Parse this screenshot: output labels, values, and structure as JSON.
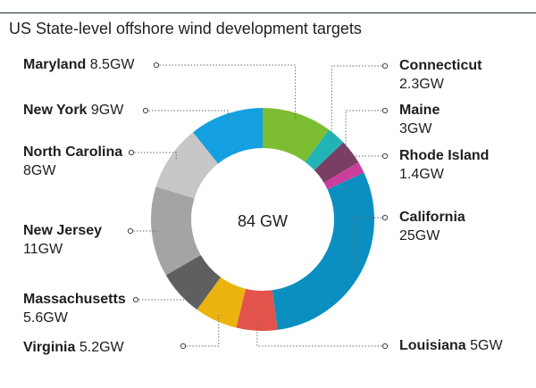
{
  "chart_data": {
    "type": "pie",
    "variant": "donut",
    "title": "US State-level offshore wind development targets",
    "center_label": "84 GW",
    "unit": "GW",
    "slices": [
      {
        "name": "Maryland",
        "value": 8.5,
        "value_text": "8.5GW",
        "color": "#7dbd32"
      },
      {
        "name": "Connecticut",
        "value": 2.3,
        "value_text": "2.3GW",
        "color": "#21b3b6"
      },
      {
        "name": "Maine",
        "value": 3,
        "value_text": "3GW",
        "color": "#7a3d64"
      },
      {
        "name": "Rhode Island",
        "value": 1.4,
        "value_text": "1.4GW",
        "color": "#cc3e9b"
      },
      {
        "name": "California",
        "value": 25,
        "value_text": "25GW",
        "color": "#0a8fc0"
      },
      {
        "name": "Louisiana",
        "value": 5,
        "value_text": "5GW",
        "color": "#e2544b"
      },
      {
        "name": "Virginia",
        "value": 5.2,
        "value_text": "5.2GW",
        "color": "#ebb30e"
      },
      {
        "name": "Massachusetts",
        "value": 5.6,
        "value_text": "5.6GW",
        "color": "#5f5f5f"
      },
      {
        "name": "New Jersey",
        "value": 11,
        "value_text": "11GW",
        "color": "#a4a4a4"
      },
      {
        "name": "North Carolina",
        "value": 8,
        "value_text": "8GW",
        "color": "#c7c7c7"
      },
      {
        "name": "New York",
        "value": 9,
        "value_text": "9GW",
        "color": "#14a0e0"
      }
    ]
  }
}
